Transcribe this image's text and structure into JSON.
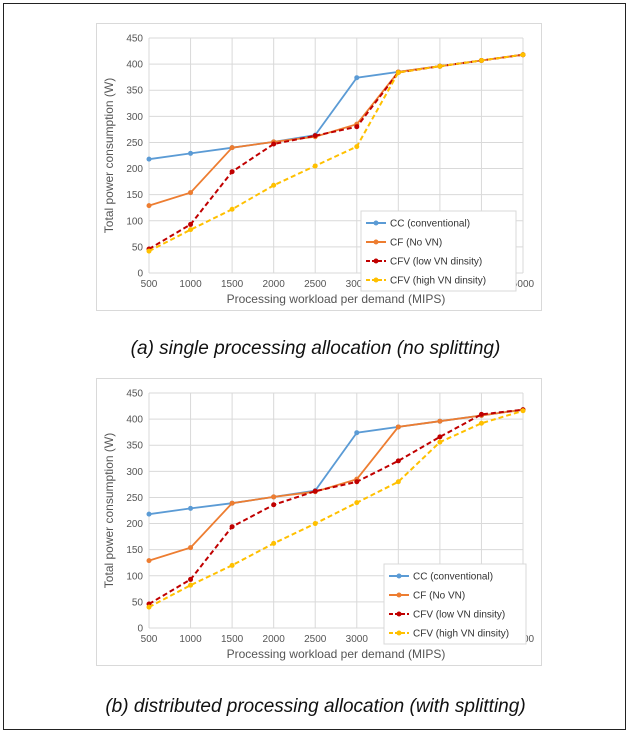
{
  "chart_data": [
    {
      "type": "line",
      "caption": "(a)  single processing allocation (no splitting)",
      "xlabel": "Processing workload per demand (MIPS)",
      "ylabel": "Total power consumption (W)",
      "x": [
        500,
        1000,
        1500,
        2000,
        2500,
        3000,
        3500,
        4000,
        4500,
        5000
      ],
      "xlim": [
        500,
        5000
      ],
      "ylim": [
        0,
        450
      ],
      "yticks": [
        0,
        50,
        100,
        150,
        200,
        250,
        300,
        350,
        400,
        450
      ],
      "grid": true,
      "legend_position": "right",
      "series": [
        {
          "name": "CC (conventional)",
          "color": "#5b9bd5",
          "dash": "solid",
          "values": [
            218,
            229,
            240,
            251,
            264,
            374,
            385,
            396,
            407,
            418
          ]
        },
        {
          "name": "CF (No VN)",
          "color": "#ed7d31",
          "dash": "solid",
          "values": [
            129,
            154,
            240,
            251,
            261,
            285,
            385,
            396,
            407,
            418
          ]
        },
        {
          "name": "CFV (low VN dinsity)",
          "color": "#c00000",
          "dash": "dash",
          "values": [
            46,
            93,
            194,
            247,
            263,
            280,
            384,
            396,
            407,
            418
          ]
        },
        {
          "name": "CFV (high VN dinsity)",
          "color": "#ffc000",
          "dash": "dash",
          "values": [
            42,
            83,
            122,
            168,
            205,
            242,
            384,
            396,
            407,
            418
          ]
        }
      ]
    },
    {
      "type": "line",
      "caption": "(b) distributed processing allocation (with splitting)",
      "xlabel": "Processing workload per demand (MIPS)",
      "ylabel": "Total power consumption (W)",
      "x": [
        500,
        1000,
        1500,
        2000,
        2500,
        3000,
        3500,
        4000,
        4500,
        5000
      ],
      "xlim": [
        500,
        5000
      ],
      "ylim": [
        0,
        450
      ],
      "yticks": [
        0,
        50,
        100,
        150,
        200,
        250,
        300,
        350,
        400,
        450
      ],
      "grid": true,
      "legend_position": "bottom-right",
      "series": [
        {
          "name": "CC (conventional)",
          "color": "#5b9bd5",
          "dash": "solid",
          "values": [
            218,
            229,
            239,
            251,
            263,
            374,
            385,
            396,
            407,
            418
          ]
        },
        {
          "name": "CF (No VN)",
          "color": "#ed7d31",
          "dash": "solid",
          "values": [
            129,
            154,
            239,
            251,
            261,
            285,
            385,
            396,
            407,
            418
          ]
        },
        {
          "name": "CFV (low VN dinsity)",
          "color": "#c00000",
          "dash": "dash",
          "values": [
            46,
            93,
            194,
            236,
            262,
            280,
            320,
            366,
            409,
            418
          ]
        },
        {
          "name": "CFV (high VN dinsity)",
          "color": "#ffc000",
          "dash": "dash",
          "values": [
            40,
            82,
            120,
            162,
            200,
            240,
            280,
            356,
            392,
            416
          ]
        }
      ]
    }
  ]
}
